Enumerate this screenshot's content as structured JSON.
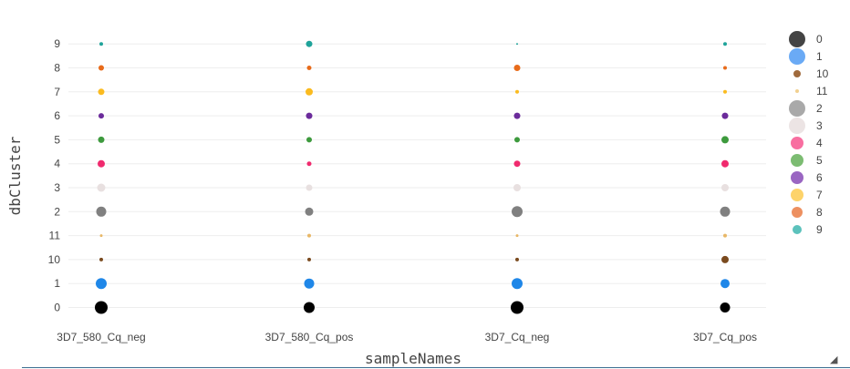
{
  "chart_data": {
    "type": "scatter",
    "xlabel": "sampleNames",
    "ylabel": "dbCluster",
    "categories": [
      "3D7_580_Cq_neg",
      "3D7_580_Cq_pos",
      "3D7_Cq_neg",
      "3D7_Cq_pos"
    ],
    "y_categories": [
      "0",
      "1",
      "10",
      "11",
      "2",
      "3",
      "4",
      "5",
      "6",
      "7",
      "8",
      "9"
    ],
    "grid": true,
    "legend_position": "right",
    "series": [
      {
        "name": "0",
        "color": "#000000",
        "legend_color": "#444444",
        "y": "0",
        "sizes": [
          14,
          12,
          14,
          11
        ]
      },
      {
        "name": "1",
        "color": "#1f87e8",
        "legend_color": "#6aaaf5",
        "y": "1",
        "sizes": [
          12,
          11,
          12,
          10
        ]
      },
      {
        "name": "10",
        "color": "#7a4a1e",
        "legend_color": "#a06a3c",
        "y": "10",
        "sizes": [
          4,
          4,
          4,
          8
        ]
      },
      {
        "name": "11",
        "color": "#e8b766",
        "legend_color": "#f1d090",
        "y": "11",
        "sizes": [
          3,
          4,
          3,
          4
        ]
      },
      {
        "name": "2",
        "color": "#808080",
        "legend_color": "#a9a9a9",
        "y": "2",
        "sizes": [
          11,
          9,
          12,
          11
        ]
      },
      {
        "name": "3",
        "color": "#e8e0e0",
        "legend_color": "#ece4e4",
        "y": "3",
        "sizes": [
          9,
          7,
          8,
          8
        ]
      },
      {
        "name": "4",
        "color": "#f02a6e",
        "legend_color": "#f86ea0",
        "y": "4",
        "sizes": [
          8,
          5,
          7,
          8
        ]
      },
      {
        "name": "5",
        "color": "#3d9a3d",
        "legend_color": "#7cbc72",
        "y": "5",
        "sizes": [
          7,
          6,
          6,
          8
        ]
      },
      {
        "name": "6",
        "color": "#6b2b9b",
        "legend_color": "#9a66c2",
        "y": "6",
        "sizes": [
          6,
          7,
          7,
          7
        ]
      },
      {
        "name": "7",
        "color": "#fbbb1f",
        "legend_color": "#fdd36a",
        "y": "7",
        "sizes": [
          7,
          8,
          4,
          4
        ]
      },
      {
        "name": "8",
        "color": "#e86b1a",
        "legend_color": "#ed9060",
        "y": "8",
        "sizes": [
          6,
          5,
          7,
          4
        ]
      },
      {
        "name": "9",
        "color": "#1fa39a",
        "legend_color": "#5cc2bc",
        "y": "9",
        "sizes": [
          4,
          7,
          2,
          4
        ]
      }
    ]
  }
}
